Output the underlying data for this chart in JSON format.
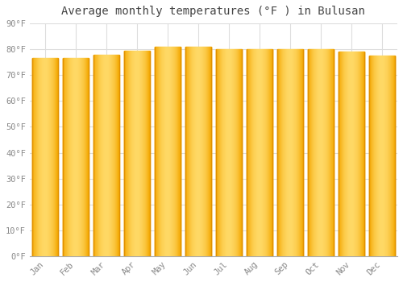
{
  "title": "Average monthly temperatures (°F ) in Bulusan",
  "categories": [
    "Jan",
    "Feb",
    "Mar",
    "Apr",
    "May",
    "Jun",
    "Jul",
    "Aug",
    "Sep",
    "Oct",
    "Nov",
    "Dec"
  ],
  "values": [
    76.5,
    76.5,
    78.0,
    79.5,
    81.0,
    81.0,
    80.0,
    80.0,
    80.0,
    80.0,
    79.0,
    77.5
  ],
  "bar_color_left": "#F5A800",
  "bar_color_center": "#FFD966",
  "bar_color_right": "#F5A800",
  "ylim": [
    0,
    90
  ],
  "ytick_step": 10,
  "background_color": "#FFFFFF",
  "plot_bg_color": "#FFFFFF",
  "grid_color": "#DDDDDD",
  "title_fontsize": 10,
  "tick_fontsize": 7.5,
  "tick_color": "#888888",
  "bar_width": 0.85,
  "title_color": "#444444"
}
